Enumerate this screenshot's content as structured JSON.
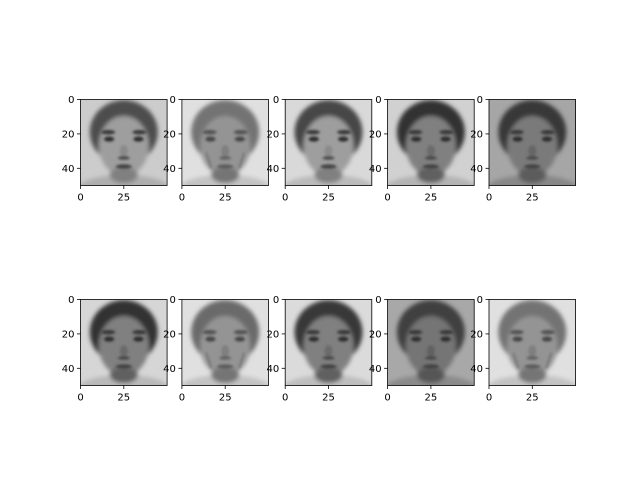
{
  "chart_data": {
    "type": "image-grid",
    "rows": 2,
    "cols": 5,
    "colormap": "gray",
    "image_shape": [
      50,
      50
    ],
    "xlim": [
      0,
      50
    ],
    "ylim": [
      50,
      0
    ],
    "xticks": [
      0,
      25
    ],
    "yticks": [
      0,
      20,
      40
    ],
    "panels": [
      {
        "row": 0,
        "col": 0,
        "tone": 0.62,
        "hair": 0.3,
        "bg": 0.8,
        "age": "middle"
      },
      {
        "row": 0,
        "col": 1,
        "tone": 0.58,
        "hair": 0.45,
        "bg": 0.88,
        "age": "old"
      },
      {
        "row": 0,
        "col": 2,
        "tone": 0.62,
        "hair": 0.28,
        "bg": 0.85,
        "age": "middle"
      },
      {
        "row": 0,
        "col": 3,
        "tone": 0.5,
        "hair": 0.2,
        "bg": 0.82,
        "age": "young"
      },
      {
        "row": 0,
        "col": 4,
        "tone": 0.48,
        "hair": 0.22,
        "bg": 0.65,
        "age": "young"
      },
      {
        "row": 1,
        "col": 0,
        "tone": 0.5,
        "hair": 0.2,
        "bg": 0.84,
        "age": "young"
      },
      {
        "row": 1,
        "col": 1,
        "tone": 0.58,
        "hair": 0.42,
        "bg": 0.88,
        "age": "old"
      },
      {
        "row": 1,
        "col": 2,
        "tone": 0.5,
        "hair": 0.22,
        "bg": 0.86,
        "age": "young"
      },
      {
        "row": 1,
        "col": 3,
        "tone": 0.46,
        "hair": 0.25,
        "bg": 0.66,
        "age": "middle"
      },
      {
        "row": 1,
        "col": 4,
        "tone": 0.58,
        "hair": 0.45,
        "bg": 0.88,
        "age": "old"
      }
    ]
  }
}
